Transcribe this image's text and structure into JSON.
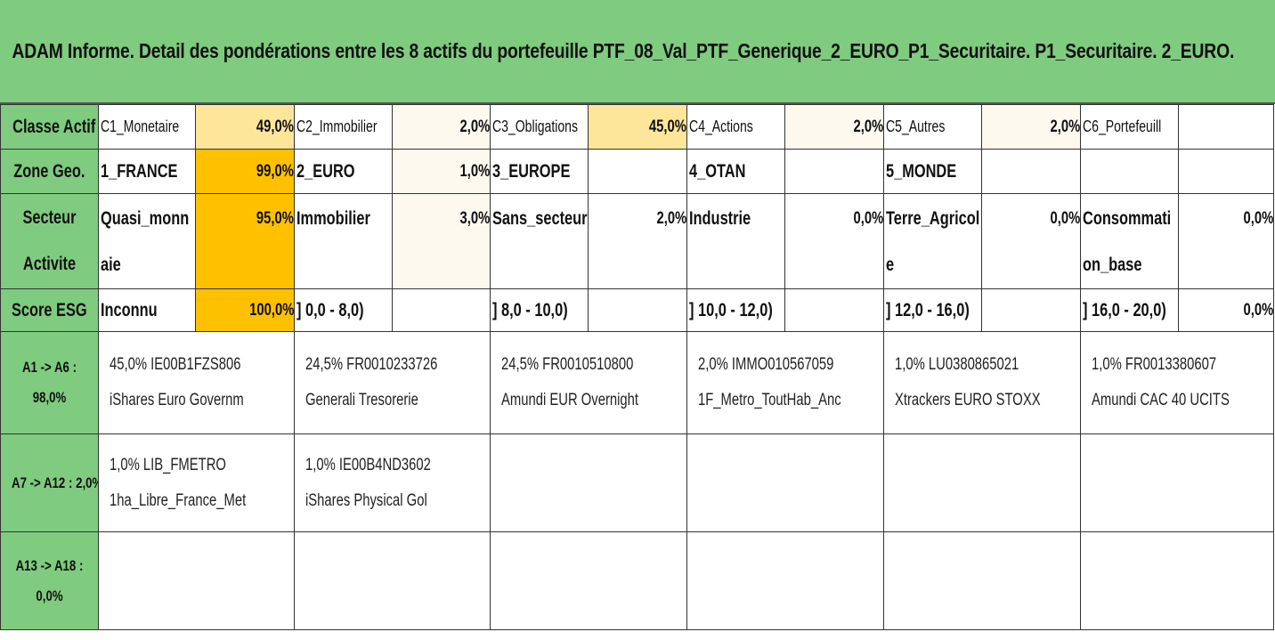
{
  "title": "ADAM Informe. Detail des pondérations entre les 8 actifs du portefeuille PTF_08_Val_PTF_Generique_2_EURO_P1_Securitaire. P1_Securitaire. 2_EURO.",
  "classe_actif": {
    "header": "Classe Actif",
    "cells": [
      {
        "label": "C1_Monetaire",
        "pct": "49,0%"
      },
      {
        "label": "C2_Immobilier",
        "pct": "2,0%"
      },
      {
        "label": "C3_Obligations",
        "pct": "45,0%"
      },
      {
        "label": "C4_Actions",
        "pct": "2,0%"
      },
      {
        "label": "C5_Autres",
        "pct": "2,0%"
      },
      {
        "label": "C6_Portefeuill",
        "pct": ""
      }
    ]
  },
  "zone_geo": {
    "header": "Zone Geo.",
    "cells": [
      {
        "label": "1_FRANCE",
        "pct": "99,0%"
      },
      {
        "label": "2_EURO",
        "pct": "1,0%"
      },
      {
        "label": "3_EUROPE",
        "pct": ""
      },
      {
        "label": "4_OTAN",
        "pct": ""
      },
      {
        "label": "5_MONDE",
        "pct": ""
      },
      {
        "label": "",
        "pct": ""
      }
    ]
  },
  "secteur": {
    "header_line1": "Secteur",
    "header_line2": "Activite",
    "cells": [
      {
        "line1": "Quasi_monn",
        "line2": "aie",
        "pct": "95,0%"
      },
      {
        "line1": "Immobilier",
        "line2": "",
        "pct": "3,0%"
      },
      {
        "line1": "Sans_secteur",
        "line2": "",
        "pct": "2,0%"
      },
      {
        "line1": "Industrie",
        "line2": "",
        "pct": "0,0%"
      },
      {
        "line1": "Terre_Agricol",
        "line2": "e",
        "pct": "0,0%"
      },
      {
        "line1": "Consommati",
        "line2": "on_base",
        "pct": "0,0%"
      }
    ]
  },
  "score_esg": {
    "header": "Score ESG",
    "cells": [
      {
        "label": "Inconnu",
        "pct": "100,0%"
      },
      {
        "label": "] 0,0 - 8,0)",
        "pct": ""
      },
      {
        "label": "] 8,0 - 10,0)",
        "pct": ""
      },
      {
        "label": "] 10,0 - 12,0)",
        "pct": ""
      },
      {
        "label": "] 12,0 - 16,0)",
        "pct": ""
      },
      {
        "label": "] 16,0 - 20,0)",
        "pct": "0,0%"
      }
    ]
  },
  "groups": [
    {
      "label_line1": "A1 -> A6 :",
      "label_line2": "98,0%",
      "assets": [
        {
          "line1": "45,0% IE00B1FZS806",
          "line2": "iShares Euro Governm"
        },
        {
          "line1": "24,5% FR0010233726",
          "line2": "Generali Tresorerie"
        },
        {
          "line1": "24,5% FR0010510800",
          "line2": "Amundi EUR Overnight"
        },
        {
          "line1": "2,0% IMMO010567059",
          "line2": "1F_Metro_ToutHab_Anc"
        },
        {
          "line1": "1,0% LU0380865021",
          "line2": "Xtrackers EURO STOXX"
        },
        {
          "line1": "1,0% FR0013380607",
          "line2": "Amundi CAC 40 UCITS"
        }
      ]
    },
    {
      "label_line1": "A7 -> A12 : 2,0%",
      "label_line2": "",
      "assets": [
        {
          "line1": "1,0% LIB_FMETRO",
          "line2": "1ha_Libre_France_Met"
        },
        {
          "line1": "1,0% IE00B4ND3602",
          "line2": "iShares Physical Gol"
        },
        {
          "line1": "",
          "line2": ""
        },
        {
          "line1": "",
          "line2": ""
        },
        {
          "line1": "",
          "line2": ""
        },
        {
          "line1": "",
          "line2": ""
        }
      ]
    },
    {
      "label_line1": "A13 -> A18 :",
      "label_line2": "0,0%",
      "assets": [
        {
          "line1": "",
          "line2": ""
        },
        {
          "line1": "",
          "line2": ""
        },
        {
          "line1": "",
          "line2": ""
        },
        {
          "line1": "",
          "line2": ""
        },
        {
          "line1": "",
          "line2": ""
        },
        {
          "line1": "",
          "line2": ""
        }
      ]
    }
  ],
  "colors": {
    "header_green": "#7fcb7f",
    "pct_strong": "#ffc000",
    "pct_light": "#fde59a",
    "pct_faint": "#fdf9ef"
  }
}
